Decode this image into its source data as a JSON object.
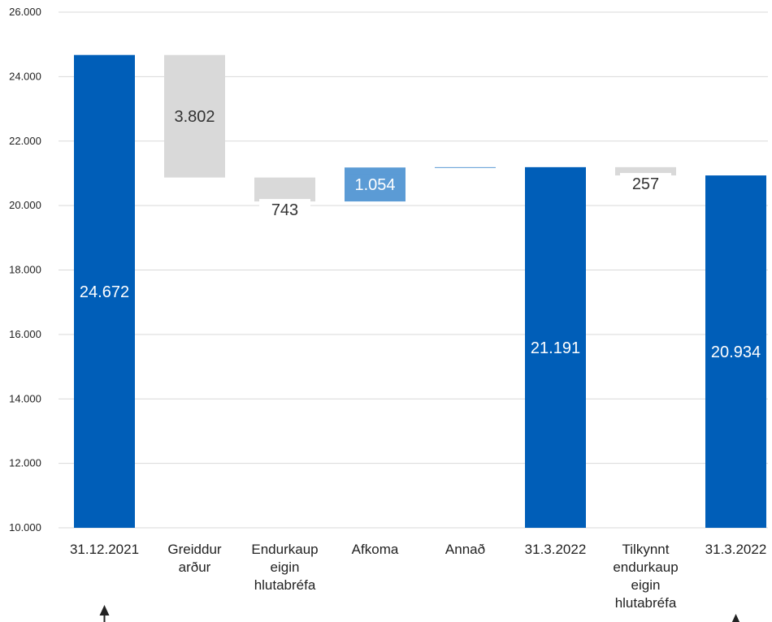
{
  "chart_data": {
    "type": "waterfall",
    "ylim": [
      10000,
      26000
    ],
    "yticks": [
      "10.000",
      "12.000",
      "14.000",
      "16.000",
      "18.000",
      "20.000",
      "22.000",
      "24.000",
      "26.000"
    ],
    "grid": true,
    "bars": [
      {
        "label": [
          "31.12.2021"
        ],
        "kind": "total",
        "start": 10000,
        "end": 24672,
        "value_label": "24.672"
      },
      {
        "label": [
          "Greiddur",
          "arður"
        ],
        "kind": "decrease",
        "start": 20870,
        "end": 24672,
        "value_label": "3.802"
      },
      {
        "label": [
          "Endurkaup",
          "eigin",
          "hlutabréfa"
        ],
        "kind": "decrease",
        "start": 20127,
        "end": 20870,
        "value_label": "743"
      },
      {
        "label": [
          "Afkoma"
        ],
        "kind": "increase",
        "start": 20127,
        "end": 21181,
        "value_label": "1.054"
      },
      {
        "label": [
          "Annað"
        ],
        "kind": "other",
        "start": 21181,
        "end": 21191,
        "value_label": ""
      },
      {
        "label": [
          "31.3.2022"
        ],
        "kind": "total",
        "start": 10000,
        "end": 21191,
        "value_label": "21.191"
      },
      {
        "label": [
          "Tilkynnt",
          "endurkaup",
          "eigin",
          "hlutabréfa"
        ],
        "kind": "decrease",
        "start": 20934,
        "end": 21191,
        "value_label": "257"
      },
      {
        "label": [
          "31.3.2022"
        ],
        "kind": "total",
        "start": 10000,
        "end": 20934,
        "value_label": "20.934"
      }
    ],
    "colors": {
      "total": "#005EB8",
      "decrease": "#D9D9D9",
      "increase": "#5B9BD5",
      "other": "#5B9BD5",
      "grid": "#D9D9D9",
      "label_on_dark": "#FFFFFF",
      "label_on_light": "#333333"
    },
    "arrow_markers": [
      {
        "under_bar": 0,
        "icon": "up-arrow-icon"
      },
      {
        "under_bar": 7,
        "icon": "up-arrow-icon"
      }
    ]
  }
}
